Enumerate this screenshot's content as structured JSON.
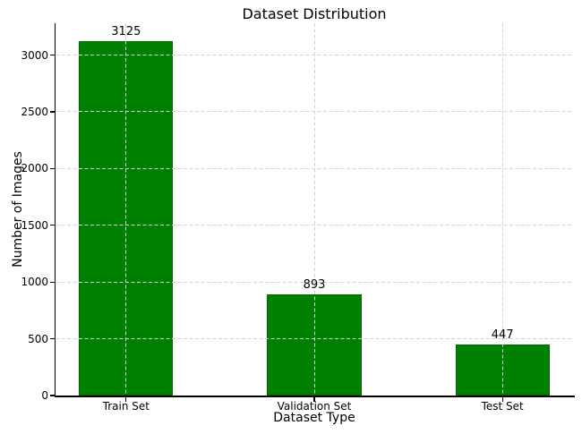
{
  "chart_data": {
    "type": "bar",
    "title": "Dataset Distribution",
    "xlabel": "Dataset Type",
    "ylabel": "Number of Images",
    "categories": [
      "Train Set",
      "Validation Set",
      "Test Set"
    ],
    "values": [
      3125,
      893,
      447
    ],
    "value_labels": [
      "3125",
      "893",
      "447"
    ],
    "yticks": [
      0,
      500,
      1000,
      1500,
      2000,
      2500,
      3000
    ],
    "ylim": [
      0,
      3280
    ],
    "xlim": [
      -0.375,
      2.375
    ],
    "bar_width": 0.5,
    "legend": "none",
    "grid": "dashed, both axes, drawn above bars",
    "colors": {
      "bar_fill": "#008000",
      "bar_edge": "#006400",
      "grid": "#d3d3d3",
      "spine": "#000000",
      "text": "#000000",
      "background": "#ffffff"
    }
  }
}
